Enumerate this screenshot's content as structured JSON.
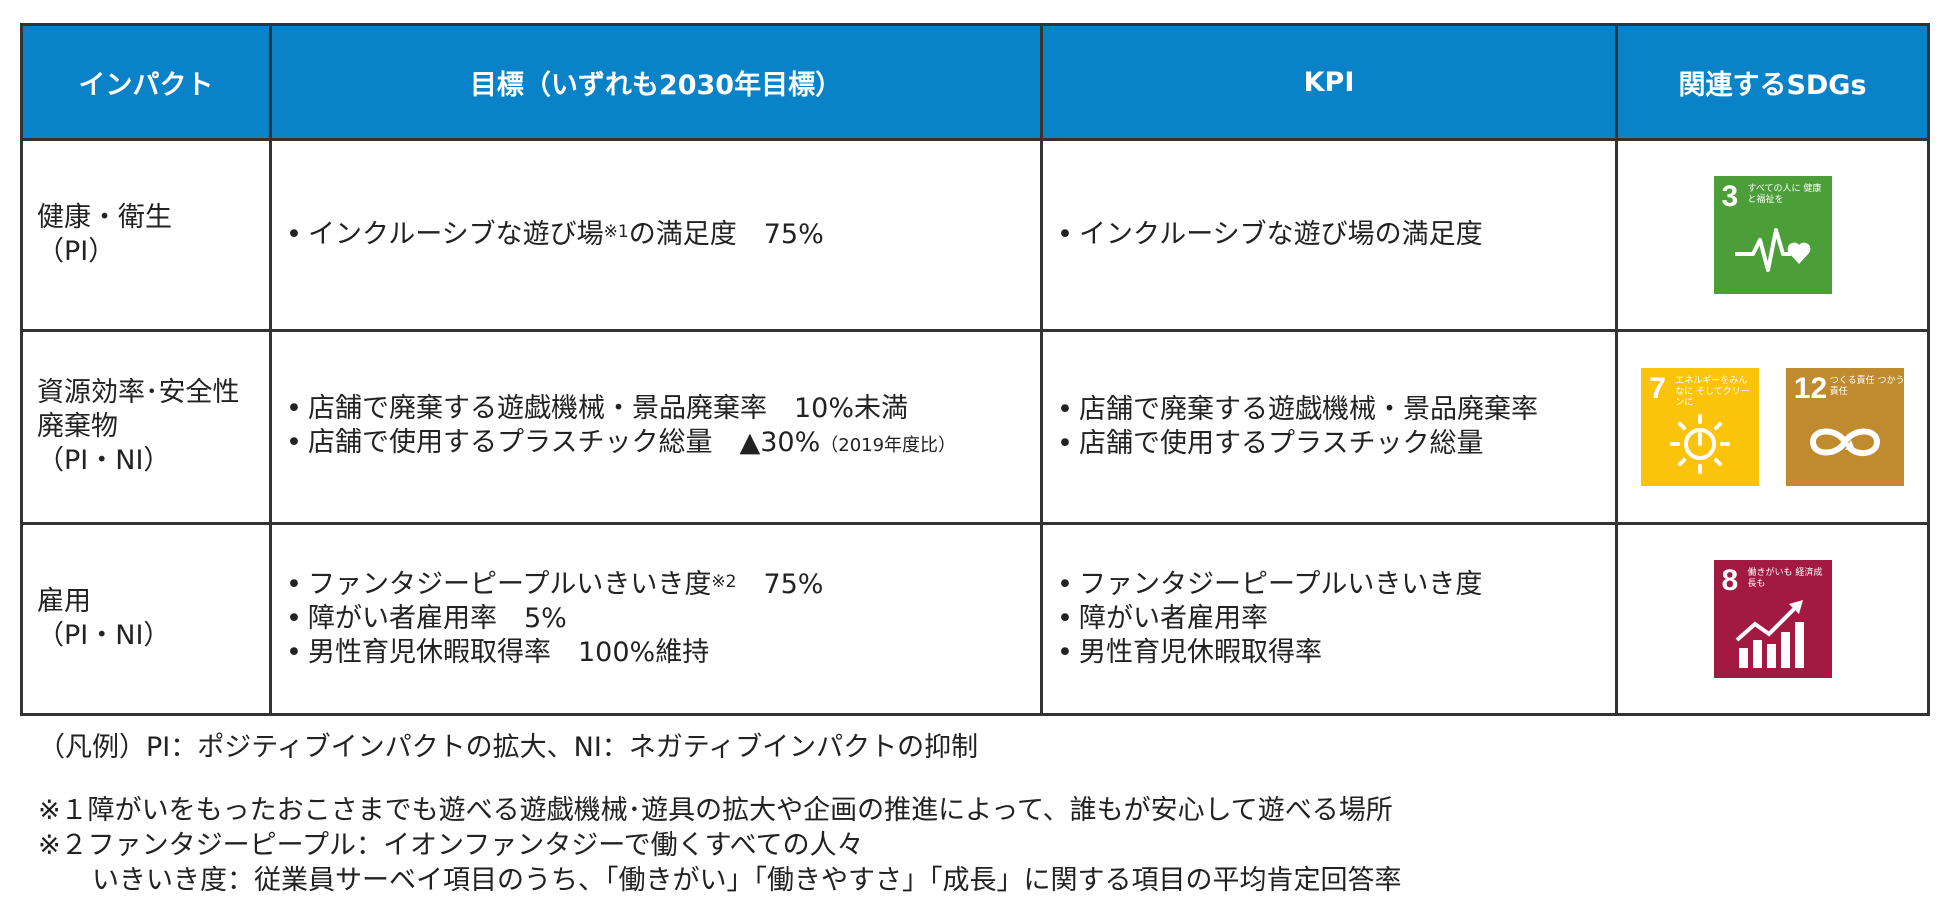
{
  "table": {
    "headers": [
      "インパクト",
      "目標（いずれも2030年目標）",
      "KPI",
      "関連するSDGs"
    ],
    "rows": [
      {
        "impact": [
          "健康・衛生",
          "（PI）"
        ],
        "goals": [
          {
            "text": "インクルーシブな遊び場",
            "sup": "※1",
            "after": "の満足度　75%"
          }
        ],
        "kpis": [
          "インクルーシブな遊び場の満足度"
        ],
        "sdgs": [
          {
            "number": "3",
            "caption": "すべての人に 健康と福祉を",
            "color": "#4c9f38",
            "icon": "heartbeat-icon"
          }
        ]
      },
      {
        "impact": [
          "資源効率･安全性",
          "廃棄物",
          "（PI・NI）"
        ],
        "goals": [
          {
            "text": "店舗で廃棄する遊戯機械・景品廃棄率　10%未満"
          },
          {
            "text": "店舗で使用するプラスチック総量　▲30%",
            "small": "（2019年度比）"
          }
        ],
        "kpis": [
          "店舗で廃棄する遊戯機械・景品廃棄率",
          "店舗で使用するプラスチック総量"
        ],
        "sdgs": [
          {
            "number": "7",
            "caption": "エネルギーをみんなに そしてクリーンに",
            "color": "#fcc30b",
            "icon": "sun-power-icon"
          },
          {
            "number": "12",
            "caption": "つくる責任 つかう責任",
            "color": "#bf8b2e",
            "icon": "infinity-icon"
          }
        ]
      },
      {
        "impact": [
          "雇用",
          "（PI・NI）"
        ],
        "goals": [
          {
            "text": "ファンタジーピープルいきいき度",
            "sup": "※2",
            "after": "　75%"
          },
          {
            "text": "障がい者雇用率　5%"
          },
          {
            "text": "男性育児休暇取得率　100%維持"
          }
        ],
        "kpis": [
          "ファンタジーピープルいきいき度",
          "障がい者雇用率",
          "男性育児休暇取得率"
        ],
        "sdgs": [
          {
            "number": "8",
            "caption": "働きがいも 経済成長も",
            "color": "#a21942",
            "icon": "growth-chart-icon"
          }
        ]
      }
    ]
  },
  "notes": {
    "legend": "（凡例）PI：ポジティブインパクトの拡大、NI：ネガティブインパクトの抑制",
    "note1": "※１障がいをもったおこさまでも遊べる遊戯機械･遊具の拡大や企画の推進によって、誰もが安心して遊べる場所",
    "note2": "※２ファンタジーピープル：イオンファンタジーで働くすべての人々",
    "note2b": "いきいき度：従業員サーベイ項目のうち、「働きがい」「働きやすさ」「成長」に関する項目の平均肯定回答率"
  }
}
